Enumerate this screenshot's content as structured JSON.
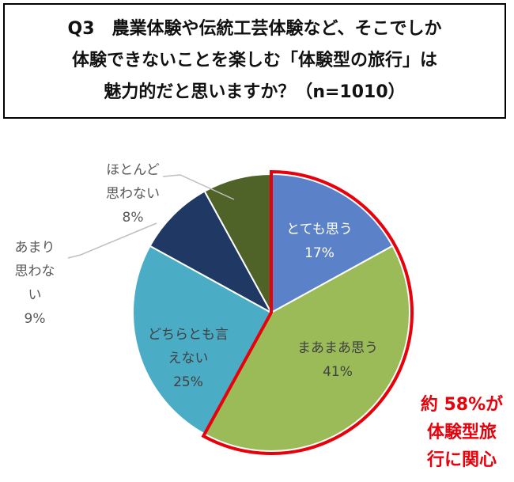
{
  "question": {
    "lines": [
      "Q3　農業体験や伝統工芸体験など、そこでしか",
      "体験できないことを楽しむ「体験型の旅行」は",
      "魅力的だと思いますか？（n=1010）"
    ]
  },
  "chart_data": {
    "type": "pie",
    "start_angle_deg": 0,
    "direction": "clockwise",
    "slices": [
      {
        "label_lines": [
          "とても思う"
        ],
        "value": 17,
        "value_label": "17%",
        "color": "#5b82c8",
        "label_color": "#ffffff",
        "label_position": "inside"
      },
      {
        "label_lines": [
          "まあまあ思う"
        ],
        "value": 41,
        "value_label": "41%",
        "color": "#9bbb59",
        "label_color": "#404040",
        "label_position": "inside"
      },
      {
        "label_lines": [
          "どちらとも言",
          "えない"
        ],
        "value": 25,
        "value_label": "25%",
        "color": "#4bacc6",
        "label_color": "#404040",
        "label_position": "inside"
      },
      {
        "label_lines": [
          "あまり",
          "思わな",
          "い"
        ],
        "value": 9,
        "value_label": "9%",
        "color": "#1f3864",
        "label_color": "#595959",
        "label_position": "outside-left"
      },
      {
        "label_lines": [
          "ほとんど",
          "思わない"
        ],
        "value": 8,
        "value_label": "8%",
        "color": "#4f6228",
        "label_color": "#595959",
        "label_position": "outside-top"
      }
    ],
    "highlight": {
      "slices": [
        0,
        1
      ],
      "color": "#e8000b"
    },
    "legend": "none"
  },
  "callout": {
    "lines": [
      "約 58%が",
      "体験型旅",
      "行に関心"
    ],
    "color": "#e8000b"
  }
}
